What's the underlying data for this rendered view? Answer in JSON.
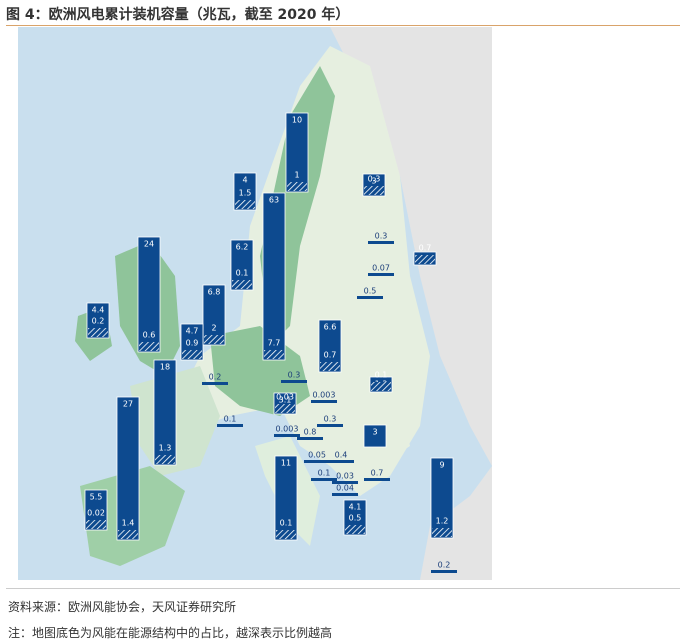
{
  "header": {
    "title": "图 4：欧洲风电累计装机容量（兆瓦，截至 2020 年）"
  },
  "map": {
    "bars": [
      {
        "total": 10,
        "offshore": 1
      },
      {
        "total": 4,
        "offshore": 1.5
      },
      {
        "total": 3,
        "offshore": 0.3
      },
      {
        "total": 63,
        "offshore": 7.7
      },
      {
        "total": 6.2,
        "offshore": 0.1
      },
      {
        "total": 24,
        "offshore": 0.6
      },
      {
        "total": 4.4,
        "offshore": 0.2
      },
      {
        "total": 6.8,
        "offshore": 2.0
      },
      {
        "total": 4.7,
        "offshore": 0.9
      },
      {
        "total": 18,
        "offshore": 1.3
      },
      {
        "total": 27,
        "offshore": 1.4
      },
      {
        "total": 5.5,
        "offshore": 0.02
      },
      {
        "total": 6.6,
        "offshore": 0.7
      },
      {
        "total": 3.1,
        "offshore": 0.03
      },
      {
        "total": 11,
        "offshore": 0.1
      },
      {
        "total": 4.1,
        "offshore": 0.5
      },
      {
        "total": 9,
        "offshore": 1.2
      },
      {
        "total": 3
      },
      {
        "total": 1.3,
        "offshore": 0.1
      },
      {
        "total": 0.9,
        "offshore": 0.7
      },
      {
        "total": 0.3
      },
      {
        "total": 0.07
      },
      {
        "total": 0.5
      },
      {
        "total": 0.2
      },
      {
        "total": 0.3
      },
      {
        "total": 0.003
      },
      {
        "total": 0.1
      },
      {
        "total": 0.3
      },
      {
        "total": 0.003
      },
      {
        "total": 0.8
      },
      {
        "total": 0.05
      },
      {
        "total": 0.4
      },
      {
        "total": 0.1
      },
      {
        "total": 0.03
      },
      {
        "total": 0.7
      },
      {
        "total": 0.04
      },
      {
        "total": 0.2
      }
    ]
  },
  "footer": {
    "source": "资料来源：欧洲风能协会，天风证券研究所",
    "note": "注：地图底色为风能在能源结构中的占比，越深表示比例越高"
  }
}
